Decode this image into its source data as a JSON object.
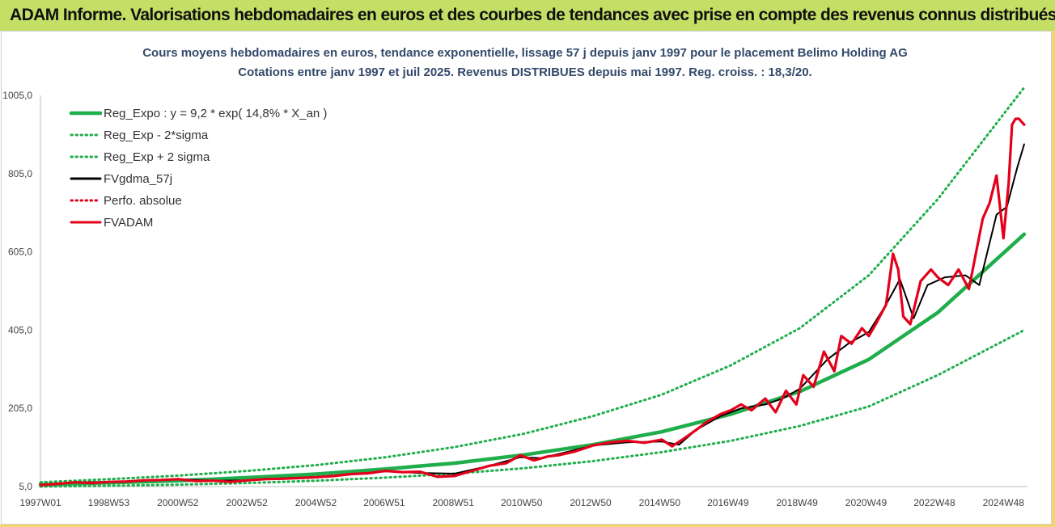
{
  "header": {
    "title": "ADAM Informe. Valorisations hebdomadaires en euros et des courbes de tendances avec prise en compte des revenus connus distribués"
  },
  "chart_data": {
    "type": "line",
    "title_line1": "Cours moyens hebdomadaires en euros, tendance exponentielle, lissage 57 j depuis janv 1997  pour le placement Belimo Holding AG",
    "title_line2": "Cotations entre janv 1997 et juil 2025. Revenus DISTRIBUES depuis mai 1997. Reg.  croiss. : 18,3/20.",
    "ylim": [
      5,
      1005
    ],
    "y_ticks": [
      "5,0",
      "205,0",
      "405,0",
      "605,0",
      "805,0",
      "1005,0"
    ],
    "x_range": [
      1997.0,
      2025.55
    ],
    "x_ticks": [
      {
        "label": "1997W01",
        "x": 1997.0
      },
      {
        "label": "1998W53",
        "x": 1998.98
      },
      {
        "label": "2000W52",
        "x": 2000.98
      },
      {
        "label": "2002W52",
        "x": 2002.98
      },
      {
        "label": "2004W52",
        "x": 2004.98
      },
      {
        "label": "2006W51",
        "x": 2006.96
      },
      {
        "label": "2008W51",
        "x": 2008.96
      },
      {
        "label": "2010W50",
        "x": 2010.94
      },
      {
        "label": "2012W50",
        "x": 2012.94
      },
      {
        "label": "2014W50",
        "x": 2014.94
      },
      {
        "label": "2016W49",
        "x": 2016.92
      },
      {
        "label": "2018W49",
        "x": 2018.92
      },
      {
        "label": "2020W49",
        "x": 2020.92
      },
      {
        "label": "2022W48",
        "x": 2022.9
      },
      {
        "label": "2024W48",
        "x": 2024.9
      }
    ],
    "legend": [
      {
        "name": "Reg_Expo : y = 9,2 * exp( 14,8% *  X_an )",
        "color": "#1fae4b",
        "style": "solid"
      },
      {
        "name": "Reg_Exp - 2*sigma",
        "color": "#1fae4b",
        "style": "dotted"
      },
      {
        "name": "Reg_Exp + 2 sigma",
        "color": "#1fae4b",
        "style": "dotted"
      },
      {
        "name": "FVgdma_57j",
        "color": "#000000",
        "style": "solid"
      },
      {
        "name": "Perfo. absolue",
        "color": "#e4001b",
        "style": "dotted"
      },
      {
        "name": "FVADAM",
        "color": "#e4001b",
        "style": "solid"
      }
    ],
    "series": [
      {
        "name": "Reg_Expo : y = 9,2 * exp( 14,8% *  X_an )",
        "x": [
          1997.0,
          1999.0,
          2001.0,
          2003.0,
          2005.0,
          2007.0,
          2009.0,
          2011.0,
          2013.0,
          2015.0,
          2017.0,
          2019.0,
          2021.0,
          2023.0,
          2025.5
        ],
        "values": [
          10,
          15,
          20,
          28,
          37,
          50,
          65,
          86,
          112,
          145,
          190,
          248,
          330,
          450,
          650
        ]
      },
      {
        "name": "Reg_Exp - 2*sigma",
        "x": [
          1997.0,
          1999.0,
          2001.0,
          2003.0,
          2005.0,
          2007.0,
          2009.0,
          2011.0,
          2013.0,
          2015.0,
          2017.0,
          2019.0,
          2021.0,
          2023.0,
          2025.5
        ],
        "values": [
          5,
          7,
          10,
          14,
          20,
          28,
          38,
          52,
          70,
          93,
          122,
          160,
          210,
          290,
          405
        ]
      },
      {
        "name": "Reg_Exp + 2 sigma",
        "x": [
          1997.0,
          1999.0,
          2001.0,
          2003.0,
          2005.0,
          2007.0,
          2009.0,
          2011.0,
          2013.0,
          2015.0,
          2017.0,
          2019.0,
          2021.0,
          2023.0,
          2025.5
        ],
        "values": [
          16,
          24,
          33,
          45,
          60,
          80,
          106,
          140,
          185,
          240,
          315,
          410,
          545,
          740,
          1025
        ]
      },
      {
        "name": "FVgdma_57j",
        "x": [
          1997.0,
          1998.0,
          1999.0,
          2000.0,
          2001.0,
          2002.0,
          2003.0,
          2004.0,
          2005.0,
          2006.0,
          2007.0,
          2008.0,
          2009.0,
          2010.0,
          2010.9,
          2011.5,
          2012.0,
          2013.0,
          2014.0,
          2015.0,
          2015.5,
          2016.0,
          2016.7,
          2017.3,
          2018.0,
          2018.5,
          2019.0,
          2019.8,
          2020.4,
          2021.0,
          2021.5,
          2021.9,
          2022.3,
          2022.7,
          2023.2,
          2023.8,
          2024.2,
          2024.7,
          2025.0,
          2025.3,
          2025.5
        ],
        "values": [
          10,
          16,
          17,
          20,
          24,
          20,
          21,
          26,
          30,
          36,
          44,
          40,
          38,
          58,
          80,
          78,
          88,
          110,
          118,
          120,
          112,
          150,
          185,
          205,
          215,
          230,
          255,
          330,
          370,
          400,
          470,
          535,
          435,
          520,
          540,
          545,
          520,
          700,
          720,
          820,
          880
        ]
      },
      {
        "name": "FVADAM",
        "x": [
          1997.0,
          1997.5,
          1998.0,
          1998.5,
          1999.0,
          1999.5,
          2000.0,
          2000.5,
          2001.0,
          2001.5,
          2002.0,
          2002.5,
          2003.0,
          2003.5,
          2004.0,
          2004.5,
          2005.0,
          2005.5,
          2006.0,
          2006.5,
          2007.0,
          2007.5,
          2008.0,
          2008.5,
          2009.0,
          2009.5,
          2010.0,
          2010.5,
          2010.9,
          2011.3,
          2011.7,
          2012.0,
          2012.5,
          2013.0,
          2013.5,
          2014.0,
          2014.5,
          2015.0,
          2015.3,
          2015.6,
          2016.0,
          2016.3,
          2016.7,
          2017.0,
          2017.3,
          2017.6,
          2018.0,
          2018.3,
          2018.6,
          2018.9,
          2019.1,
          2019.4,
          2019.7,
          2020.0,
          2020.2,
          2020.5,
          2020.8,
          2021.0,
          2021.2,
          2021.5,
          2021.7,
          2021.85,
          2022.0,
          2022.2,
          2022.5,
          2022.8,
          2023.0,
          2023.3,
          2023.6,
          2023.9,
          2024.1,
          2024.3,
          2024.5,
          2024.7,
          2024.9,
          2025.05,
          2025.15,
          2025.25,
          2025.35,
          2025.5
        ],
        "values": [
          9,
          12,
          16,
          14,
          17,
          18,
          21,
          22,
          24,
          19,
          20,
          17,
          21,
          24,
          25,
          27,
          29,
          32,
          37,
          39,
          45,
          42,
          43,
          30,
          32,
          45,
          58,
          65,
          85,
          72,
          82,
          85,
          95,
          110,
          118,
          122,
          117,
          125,
          108,
          125,
          150,
          170,
          190,
          200,
          215,
          200,
          230,
          195,
          250,
          215,
          290,
          260,
          350,
          300,
          390,
          370,
          410,
          390,
          420,
          470,
          600,
          560,
          440,
          420,
          530,
          560,
          540,
          520,
          560,
          510,
          600,
          690,
          730,
          800,
          640,
          780,
          930,
          945,
          945,
          930
        ]
      }
    ]
  }
}
